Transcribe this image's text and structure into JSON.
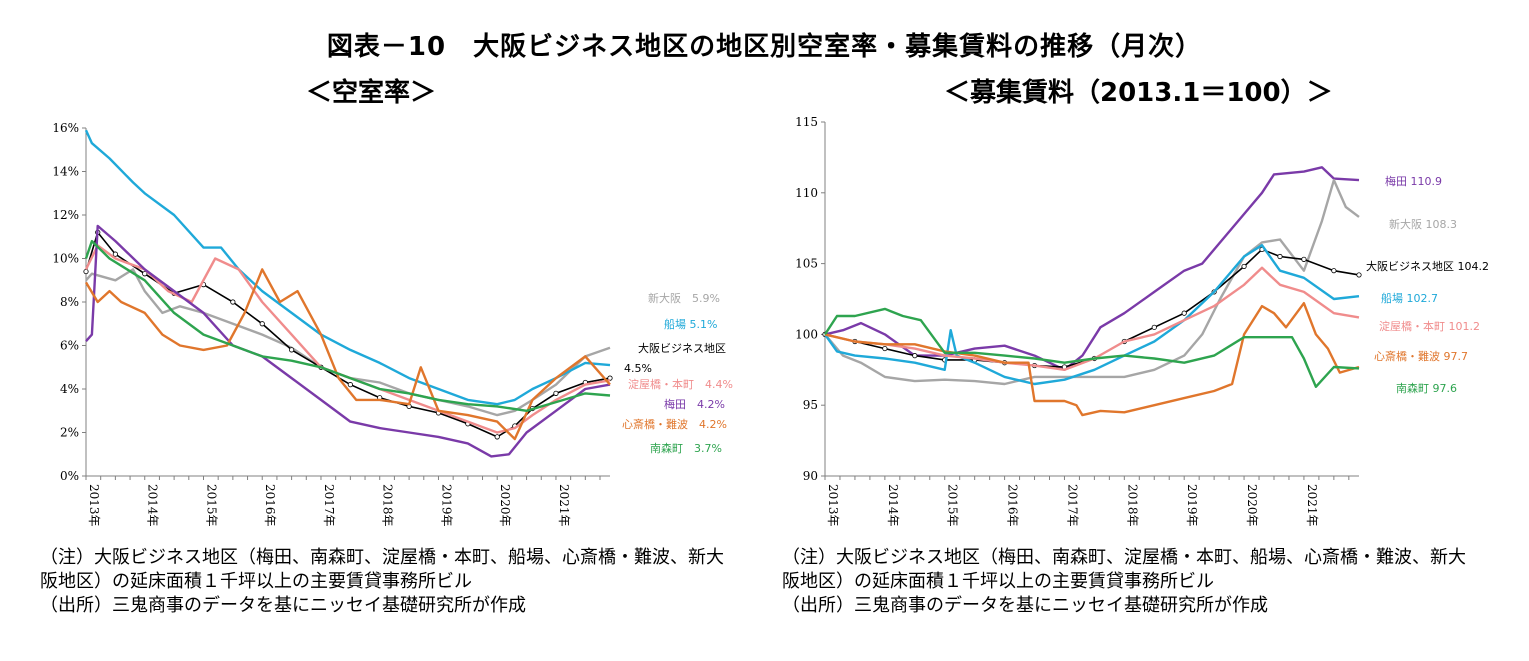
{
  "title": "図表－10　大阪ビジネス地区の地区別空室率・募集賃料の推移（月次）",
  "colors": {
    "新大阪": "#a6a6a6",
    "船場": "#1fa9d9",
    "大阪ビジネス地区": "#000000",
    "淀屋橋・本町": "#f08c8c",
    "梅田": "#7a3aa8",
    "心斎橋・難波": "#e0762c",
    "南森町": "#2ea44f"
  },
  "chart_data": [
    {
      "type": "line",
      "title": "＜空室率＞",
      "x_labels": [
        "2013年",
        "2014年",
        "2015年",
        "2016年",
        "2017年",
        "2018年",
        "2019年",
        "2020年",
        "2021年"
      ],
      "x_range": [
        2013,
        2021.92
      ],
      "ylim": [
        0,
        16
      ],
      "y_ticks": [
        "0%",
        "2%",
        "4%",
        "6%",
        "8%",
        "10%",
        "12%",
        "14%",
        "16%"
      ],
      "series": [
        {
          "name": "新大阪",
          "label": "新大阪　5.9%",
          "x": [
            2013,
            2013.1,
            2013.5,
            2013.8,
            2014,
            2014.3,
            2014.6,
            2015,
            2015.5,
            2016,
            2016.5,
            2017,
            2017.5,
            2018,
            2018.5,
            2019,
            2019.5,
            2020,
            2020.3,
            2020.6,
            2021,
            2021.5,
            2021.92
          ],
          "values": [
            9.0,
            9.3,
            9.0,
            9.5,
            8.5,
            7.5,
            7.8,
            7.5,
            7.0,
            6.5,
            5.9,
            5.0,
            4.5,
            4.3,
            3.8,
            3.5,
            3.2,
            2.8,
            3.0,
            3.5,
            4.2,
            5.5,
            5.9
          ]
        },
        {
          "name": "船場",
          "label": "船場 5.1%",
          "x": [
            2013,
            2013.1,
            2013.4,
            2013.8,
            2014,
            2014.5,
            2015,
            2015.3,
            2015.6,
            2016,
            2016.5,
            2017,
            2017.5,
            2018,
            2018.5,
            2019,
            2019.5,
            2020,
            2020.3,
            2020.6,
            2021,
            2021.5,
            2021.92
          ],
          "values": [
            15.9,
            15.3,
            14.6,
            13.5,
            13.0,
            12.0,
            10.5,
            10.5,
            9.5,
            8.5,
            7.5,
            6.5,
            5.8,
            5.2,
            4.5,
            4.0,
            3.5,
            3.3,
            3.5,
            4.0,
            4.5,
            5.2,
            5.1
          ]
        },
        {
          "name": "大阪ビジネス地区",
          "label": "大阪ビジネス地区",
          "label2": "4.5%",
          "x": [
            2013,
            2013.2,
            2013.5,
            2014,
            2014.5,
            2015,
            2015.5,
            2016,
            2016.5,
            2017,
            2017.5,
            2018,
            2018.5,
            2019,
            2019.5,
            2020,
            2020.3,
            2020.6,
            2021,
            2021.5,
            2021.92
          ],
          "values": [
            9.4,
            11.2,
            10.2,
            9.3,
            8.4,
            8.8,
            8.0,
            7.0,
            5.8,
            5.0,
            4.2,
            3.6,
            3.2,
            2.9,
            2.4,
            1.8,
            2.3,
            3.1,
            3.8,
            4.3,
            4.5
          ]
        },
        {
          "name": "淀屋橋・本町",
          "label": "淀屋橋・本町　4.4%",
          "x": [
            2013,
            2013.2,
            2013.5,
            2014,
            2014.4,
            2014.8,
            2015.2,
            2015.6,
            2016,
            2016.5,
            2017,
            2017.5,
            2018,
            2018.5,
            2019,
            2019.5,
            2020,
            2020.3,
            2020.6,
            2021,
            2021.5,
            2021.92
          ],
          "values": [
            9.5,
            10.6,
            10.0,
            9.5,
            8.5,
            8.0,
            10.0,
            9.5,
            8.0,
            6.5,
            5.0,
            4.5,
            4.0,
            3.5,
            3.0,
            2.5,
            2.0,
            2.2,
            2.8,
            3.5,
            4.2,
            4.4
          ]
        },
        {
          "name": "梅田",
          "label": "梅田　4.2%",
          "x": [
            2013,
            2013.1,
            2013.2,
            2013.5,
            2014,
            2014.5,
            2015,
            2015.5,
            2016,
            2016.5,
            2017,
            2017.5,
            2018,
            2018.5,
            2019,
            2019.5,
            2019.9,
            2020.2,
            2020.5,
            2021,
            2021.5,
            2021.92
          ],
          "values": [
            6.2,
            6.5,
            11.5,
            10.8,
            9.5,
            8.5,
            7.5,
            6.0,
            5.5,
            4.5,
            3.5,
            2.5,
            2.2,
            2.0,
            1.8,
            1.5,
            0.9,
            1.0,
            2.0,
            3.0,
            4.0,
            4.2
          ]
        },
        {
          "name": "心斎橋・難波",
          "label": "心斎橋・難波　4.2%",
          "x": [
            2013,
            2013.2,
            2013.4,
            2013.6,
            2014,
            2014.3,
            2014.6,
            2015,
            2015.4,
            2015.7,
            2016,
            2016.3,
            2016.6,
            2017,
            2017.3,
            2017.6,
            2018,
            2018.5,
            2018.7,
            2019,
            2019.5,
            2020,
            2020.3,
            2020.6,
            2021,
            2021.5,
            2021.92
          ],
          "values": [
            8.9,
            8.0,
            8.5,
            8.0,
            7.5,
            6.5,
            6.0,
            5.8,
            6.0,
            7.5,
            9.5,
            8.0,
            8.5,
            6.5,
            4.5,
            3.5,
            3.5,
            3.3,
            5.0,
            3.0,
            2.8,
            2.5,
            1.7,
            3.5,
            4.5,
            5.5,
            4.2
          ]
        },
        {
          "name": "南森町",
          "label": "南森町　3.7%",
          "x": [
            2013,
            2013.1,
            2013.4,
            2014,
            2014.5,
            2015,
            2015.5,
            2016,
            2016.5,
            2017,
            2017.5,
            2018,
            2018.5,
            2019,
            2019.5,
            2020,
            2020.5,
            2021,
            2021.5,
            2021.92
          ],
          "values": [
            10.0,
            10.8,
            10.0,
            9.0,
            7.5,
            6.5,
            6.0,
            5.5,
            5.3,
            5.0,
            4.5,
            4.0,
            3.8,
            3.5,
            3.3,
            3.2,
            3.0,
            3.4,
            3.8,
            3.7
          ]
        }
      ],
      "note": [
        "（注）大阪ビジネス地区（梅田、南森町、淀屋橋・本町、船場、心斎橋・難波、新大",
        "阪地区）の延床面積１千坪以上の主要賃貸事務所ビル",
        "（出所）三鬼商事のデータを基にニッセイ基礎研究所が作成"
      ]
    },
    {
      "type": "line",
      "title": "＜募集賃料（2013.1＝100）＞",
      "x_labels": [
        "2013年",
        "2014年",
        "2015年",
        "2016年",
        "2017年",
        "2018年",
        "2019年",
        "2020年",
        "2021年"
      ],
      "x_range": [
        2013,
        2021.92
      ],
      "ylim": [
        90,
        115
      ],
      "y_ticks": [
        "90",
        "95",
        "100",
        "105",
        "110",
        "115"
      ],
      "series": [
        {
          "name": "梅田",
          "label": "梅田 110.9",
          "x": [
            2013,
            2013.3,
            2013.6,
            2014,
            2014.5,
            2015,
            2015.5,
            2016,
            2016.5,
            2017,
            2017.3,
            2017.6,
            2018,
            2018.5,
            2019,
            2019.3,
            2019.6,
            2020,
            2020.3,
            2020.5,
            2021,
            2021.3,
            2021.5,
            2021.92
          ],
          "values": [
            100,
            100.3,
            100.8,
            100.0,
            98.5,
            98.5,
            99.0,
            99.2,
            98.5,
            97.5,
            98.5,
            100.5,
            101.5,
            103.0,
            104.5,
            105.0,
            106.5,
            108.5,
            110.0,
            111.3,
            111.5,
            111.8,
            111.0,
            110.9
          ]
        },
        {
          "name": "新大阪",
          "label": "新大阪 108.3",
          "x": [
            2013,
            2013.3,
            2013.6,
            2014,
            2014.5,
            2015,
            2015.5,
            2016,
            2016.5,
            2017,
            2017.3,
            2017.6,
            2018,
            2018.5,
            2019,
            2019.3,
            2019.6,
            2020,
            2020.3,
            2020.6,
            2021,
            2021.3,
            2021.5,
            2021.7,
            2021.92
          ],
          "values": [
            100,
            98.5,
            98.0,
            97.0,
            96.7,
            96.8,
            96.7,
            96.5,
            97.0,
            97.0,
            97.0,
            97.0,
            97.0,
            97.5,
            98.5,
            100.0,
            102.5,
            105.5,
            106.5,
            106.7,
            104.5,
            108.0,
            110.9,
            109.0,
            108.3
          ]
        },
        {
          "name": "大阪ビジネス地区",
          "label": "大阪ビジネス地区 104.2",
          "x": [
            2013,
            2013.5,
            2014,
            2014.5,
            2015,
            2015.5,
            2016,
            2016.5,
            2017,
            2017.5,
            2018,
            2018.5,
            2019,
            2019.5,
            2020,
            2020.3,
            2020.6,
            2021,
            2021.5,
            2021.92
          ],
          "values": [
            100,
            99.5,
            99.0,
            98.5,
            98.2,
            98.2,
            98.0,
            97.8,
            97.7,
            98.3,
            99.5,
            100.5,
            101.5,
            103.0,
            104.8,
            106.0,
            105.5,
            105.3,
            104.5,
            104.2
          ]
        },
        {
          "name": "船場",
          "label": "船場 102.7",
          "x": [
            2013,
            2013.2,
            2013.5,
            2014,
            2014.5,
            2015,
            2015.1,
            2015.2,
            2015.5,
            2016,
            2016.5,
            2017,
            2017.5,
            2018,
            2018.5,
            2019,
            2019.5,
            2020,
            2020.3,
            2020.6,
            2021,
            2021.5,
            2021.92
          ],
          "values": [
            100,
            98.8,
            98.5,
            98.3,
            98.0,
            97.5,
            100.3,
            98.5,
            98.0,
            97.0,
            96.5,
            96.8,
            97.5,
            98.5,
            99.5,
            101.0,
            103.0,
            105.5,
            106.3,
            104.5,
            104.0,
            102.5,
            102.7
          ]
        },
        {
          "name": "淀屋橋・本町",
          "label": "淀屋橋・本町 101.2",
          "x": [
            2013,
            2013.5,
            2014,
            2014.5,
            2015,
            2015.5,
            2016,
            2016.5,
            2017,
            2017.5,
            2018,
            2018.5,
            2019,
            2019.5,
            2020,
            2020.3,
            2020.6,
            2021,
            2021.5,
            2021.92
          ],
          "values": [
            100,
            99.5,
            99.3,
            99.0,
            98.5,
            98.3,
            98.0,
            97.8,
            97.5,
            98.3,
            99.5,
            100.0,
            101.0,
            102.0,
            103.5,
            104.7,
            103.5,
            103.0,
            101.5,
            101.2
          ]
        },
        {
          "name": "心斎橋・難波",
          "label": "心斎橋・難波 97.7",
          "x": [
            2013,
            2013.5,
            2014,
            2014.5,
            2015,
            2015.5,
            2016,
            2016.4,
            2016.5,
            2017,
            2017.2,
            2017.3,
            2017.6,
            2018,
            2018.5,
            2019,
            2019.5,
            2019.8,
            2020,
            2020.3,
            2020.5,
            2020.7,
            2021,
            2021.2,
            2021.4,
            2021.6,
            2021.92
          ],
          "values": [
            100,
            99.5,
            99.3,
            99.3,
            98.8,
            98.5,
            98.0,
            98.0,
            95.3,
            95.3,
            95.0,
            94.3,
            94.6,
            94.5,
            95.0,
            95.5,
            96.0,
            96.5,
            100.0,
            102.0,
            101.5,
            100.5,
            102.2,
            100.0,
            99.0,
            97.3,
            97.7
          ]
        },
        {
          "name": "南森町",
          "label": "南森町 97.6",
          "x": [
            2013,
            2013.2,
            2013.5,
            2014,
            2014.3,
            2014.6,
            2015,
            2015.5,
            2016,
            2016.5,
            2017,
            2017.5,
            2018,
            2018.5,
            2019,
            2019.5,
            2020,
            2020.5,
            2020.8,
            2021,
            2021.2,
            2021.5,
            2021.92
          ],
          "values": [
            100,
            101.3,
            101.3,
            101.8,
            101.3,
            101.0,
            98.7,
            98.7,
            98.5,
            98.3,
            98.0,
            98.3,
            98.5,
            98.3,
            98.0,
            98.5,
            99.8,
            99.8,
            99.8,
            98.3,
            96.3,
            97.7,
            97.6
          ]
        }
      ],
      "note": [
        "（注）大阪ビジネス地区（梅田、南森町、淀屋橋・本町、船場、心斎橋・難波、新大",
        "阪地区）の延床面積１千坪以上の主要賃貸事務所ビル",
        "（出所）三鬼商事のデータを基にニッセイ基礎研究所が作成"
      ]
    }
  ]
}
